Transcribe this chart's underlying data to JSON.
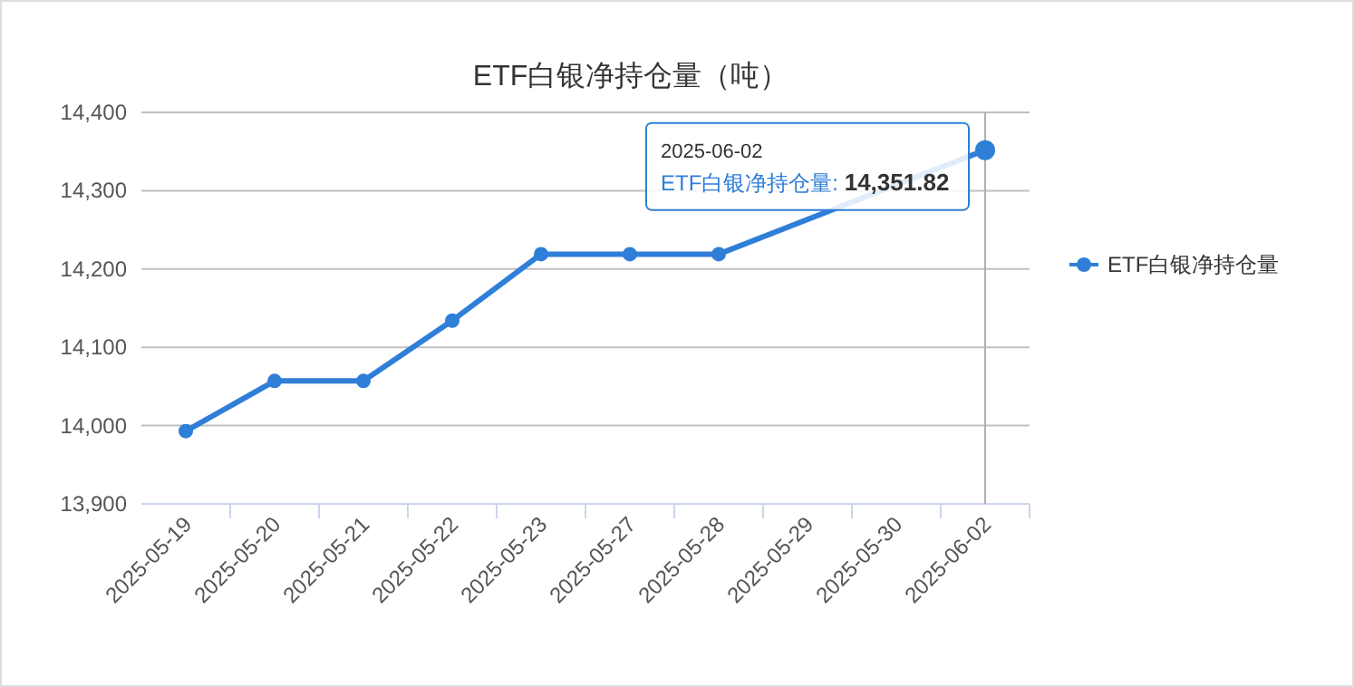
{
  "chart_data": {
    "type": "line",
    "title": "ETF白银净持仓量（吨）",
    "categories": [
      "2025-05-19",
      "2025-05-20",
      "2025-05-21",
      "2025-05-22",
      "2025-05-23",
      "2025-05-27",
      "2025-05-28",
      "2025-05-29",
      "2025-05-30",
      "2025-06-02"
    ],
    "series": [
      {
        "name": "ETF白银净持仓量",
        "color": "#2f7ed8",
        "values": [
          13993,
          14057,
          14057,
          14134,
          14219,
          14219,
          14219,
          null,
          null,
          14351.82
        ]
      }
    ],
    "ylim": [
      13900,
      14400
    ],
    "yticks": [
      {
        "value": 13900,
        "label": "13,900"
      },
      {
        "value": 14000,
        "label": "14,000"
      },
      {
        "value": 14100,
        "label": "14,100"
      },
      {
        "value": 14200,
        "label": "14,200"
      },
      {
        "value": 14300,
        "label": "14,300"
      },
      {
        "value": 14400,
        "label": "14,400"
      }
    ],
    "grid": "y",
    "legend": "right",
    "marker": "circle",
    "line_style": "solid",
    "ref_lines": [
      {
        "axis": "x",
        "value": "2025-06-02",
        "color": "#b0b0b0"
      }
    ],
    "annotations": [
      {
        "text": "2025-06-02\nETF白银净持仓量: 14,351.82",
        "x": "2025-06-02",
        "y": 14351.82
      }
    ]
  }
}
